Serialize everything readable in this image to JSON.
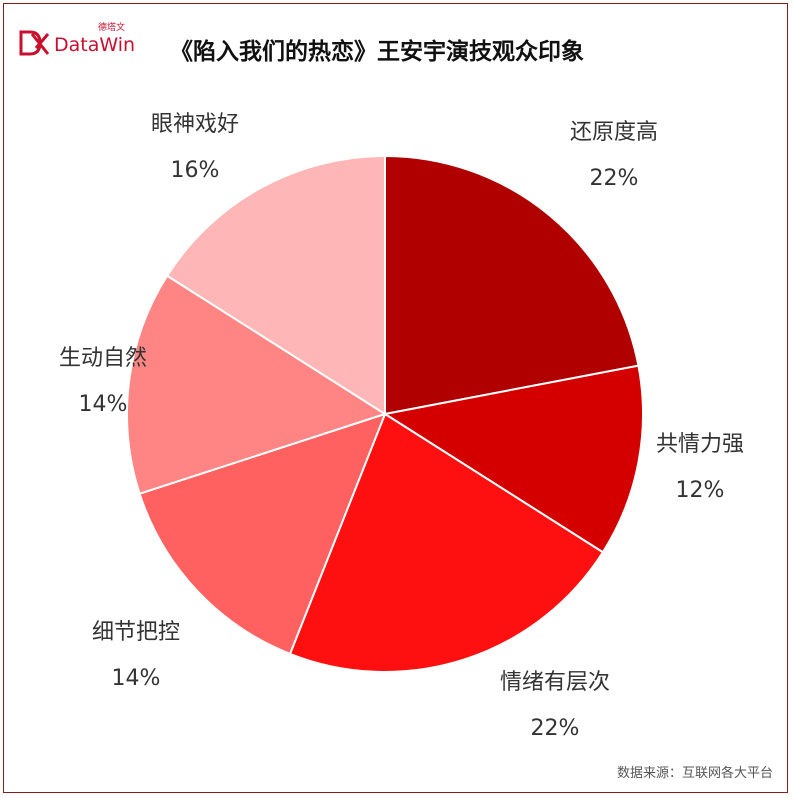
{
  "logo": {
    "brand": "DataWin",
    "sub": "德塔文",
    "color": "#c8102e"
  },
  "title": "《陷入我们的热恋》王安宇演技观众印象",
  "source_label": "数据来源：",
  "source_value": "互联网各大平台",
  "chart_data": {
    "type": "pie",
    "title": "《陷入我们的热恋》王安宇演技观众印象",
    "start": "12 o'clock, clockwise",
    "slices": [
      {
        "label": "还原度高",
        "value": 22,
        "display": "22%",
        "color": "#b00000"
      },
      {
        "label": "共情力强",
        "value": 12,
        "display": "12%",
        "color": "#d40000"
      },
      {
        "label": "情绪有层次",
        "value": 22,
        "display": "22%",
        "color": "#ff1010"
      },
      {
        "label": "细节把控",
        "value": 14,
        "display": "14%",
        "color": "#ff6060"
      },
      {
        "label": "生动自然",
        "value": 14,
        "display": "14%",
        "color": "#ff8585"
      },
      {
        "label": "眼神戏好",
        "value": 16,
        "display": "16%",
        "color": "#ffb6b6"
      }
    ]
  }
}
